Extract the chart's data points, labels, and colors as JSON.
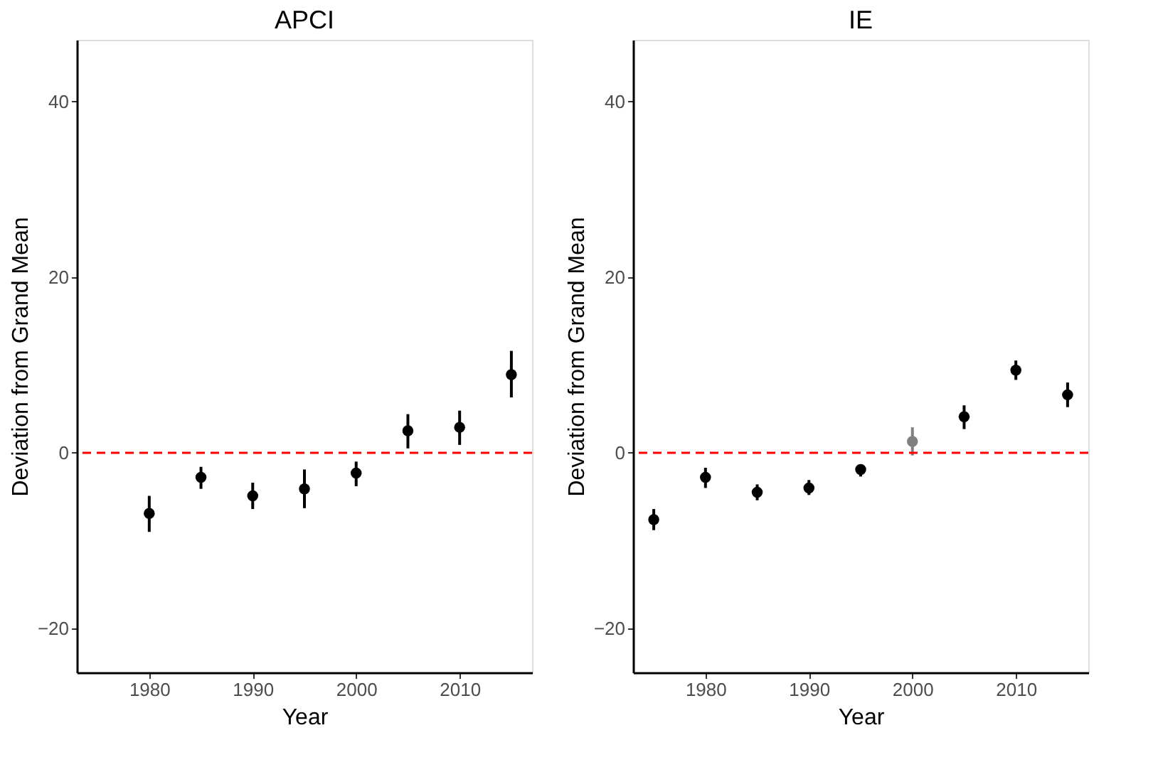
{
  "chart_data": [
    {
      "type": "scatter",
      "title": "APCI",
      "xlabel": "Year",
      "ylabel": "Deviation from Grand Mean",
      "x": [
        1980,
        1985,
        1990,
        1995,
        2000,
        2005,
        2010,
        2015
      ],
      "series": [
        {
          "colors": [
            "#000000",
            "#000000",
            "#000000",
            "#000000",
            "#000000",
            "#000000",
            "#000000",
            "#000000"
          ],
          "values": [
            -6.9,
            -2.8,
            -4.9,
            -4.1,
            -2.3,
            2.5,
            2.9,
            8.9
          ],
          "errors": [
            [
              -9.0,
              -4.9
            ],
            [
              -4.1,
              -1.6
            ],
            [
              -6.4,
              -3.4
            ],
            [
              -6.3,
              -1.9
            ],
            [
              -3.8,
              -1.0
            ],
            [
              0.5,
              4.4
            ],
            [
              0.9,
              4.8
            ],
            [
              6.3,
              11.6
            ]
          ]
        }
      ],
      "xlim": [
        1973,
        2017
      ],
      "xticks": [
        1980,
        1990,
        2000,
        2010
      ],
      "ylim": [
        -25,
        47
      ],
      "yticks": [
        -20,
        0,
        20,
        40
      ],
      "marker": "circle",
      "ref_lines": [
        {
          "axis": "y",
          "value": 0,
          "color": "#ff0000",
          "line_style": "dashed"
        }
      ]
    },
    {
      "type": "scatter",
      "title": "IE",
      "xlabel": "Year",
      "ylabel": "Deviation from Grand Mean",
      "x": [
        1975,
        1980,
        1985,
        1990,
        1995,
        2000,
        2005,
        2010,
        2015
      ],
      "series": [
        {
          "colors": [
            "#000000",
            "#000000",
            "#000000",
            "#000000",
            "#000000",
            "#808080",
            "#000000",
            "#000000",
            "#000000"
          ],
          "values": [
            -7.6,
            -2.8,
            -4.5,
            -4.0,
            -1.9,
            1.3,
            4.1,
            9.4,
            6.6
          ],
          "errors": [
            [
              -8.8,
              -6.4
            ],
            [
              -4.0,
              -1.7
            ],
            [
              -5.4,
              -3.6
            ],
            [
              -4.8,
              -3.1
            ],
            [
              -2.7,
              -1.3
            ],
            [
              -0.3,
              2.9
            ],
            [
              2.7,
              5.4
            ],
            [
              8.3,
              10.5
            ],
            [
              5.2,
              8.0
            ]
          ]
        }
      ],
      "xlim": [
        1973,
        2017
      ],
      "xticks": [
        1980,
        1990,
        2000,
        2010
      ],
      "ylim": [
        -25,
        47
      ],
      "yticks": [
        -20,
        0,
        20,
        40
      ],
      "marker": "circle",
      "ref_lines": [
        {
          "axis": "y",
          "value": 0,
          "color": "#ff0000",
          "line_style": "dashed"
        }
      ]
    }
  ]
}
